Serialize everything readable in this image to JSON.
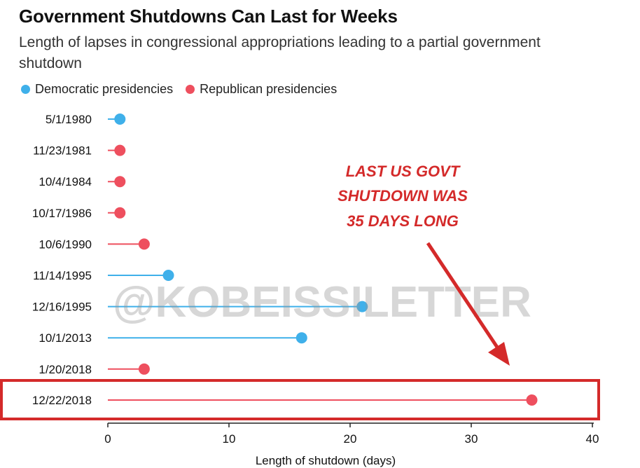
{
  "chart_data": {
    "type": "dot-lollipop",
    "title": "Government Shutdowns Can Last for Weeks",
    "subtitle": "Length of lapses in congressional appropriations leading to a partial government shutdown",
    "legend": [
      {
        "name": "Democratic presidencies",
        "color": "#3fb0ea"
      },
      {
        "name": "Republican presidencies",
        "color": "#ee4f5e"
      }
    ],
    "categories": [
      "5/1/1980",
      "11/23/1981",
      "10/4/1984",
      "10/17/1986",
      "10/6/1990",
      "11/14/1995",
      "12/16/1995",
      "10/1/2013",
      "1/20/2018",
      "12/22/2018"
    ],
    "values": [
      1,
      1,
      1,
      1,
      3,
      5,
      21,
      16,
      3,
      35
    ],
    "party": [
      "Democratic",
      "Republican",
      "Republican",
      "Republican",
      "Republican",
      "Democratic",
      "Democratic",
      "Democratic",
      "Republican",
      "Republican"
    ],
    "xlabel": "Length of shutdown (days)",
    "xlim": [
      0,
      40
    ],
    "xticks": [
      "0",
      "10",
      "20",
      "30",
      "40"
    ],
    "highlight": "12/22/2018",
    "annotation": [
      "LAST US GOVT",
      "SHUTDOWN WAS",
      "35 DAYS LONG"
    ],
    "highlight_color": "#d42a2a"
  },
  "watermark": "@KOBEISSILETTER"
}
